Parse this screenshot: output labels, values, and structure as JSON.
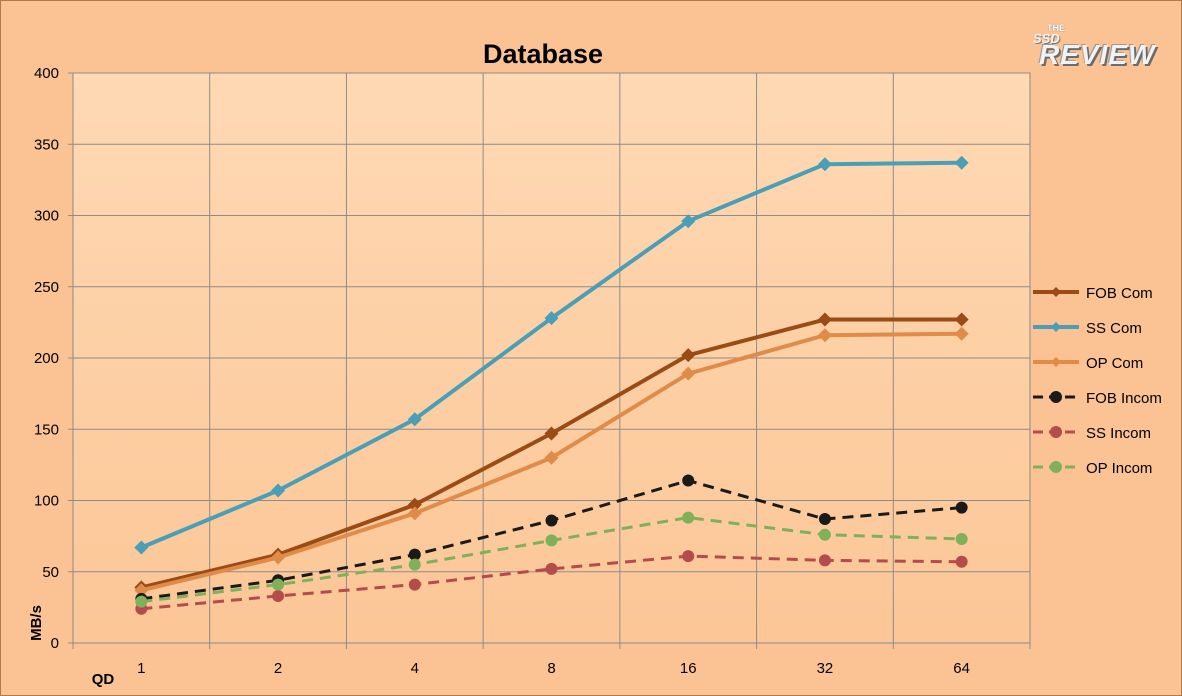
{
  "chart_data": {
    "type": "line",
    "title": "Database",
    "xlabel": "QD",
    "ylabel": "MB/s",
    "categories": [
      "1",
      "2",
      "4",
      "8",
      "16",
      "32",
      "64"
    ],
    "ylim": [
      0,
      400
    ],
    "yticks": [
      0,
      50,
      100,
      150,
      200,
      250,
      300,
      350,
      400
    ],
    "grid": true,
    "legend_position": "right",
    "series": [
      {
        "name": "FOB Com",
        "values": [
          39,
          62,
          97,
          147,
          202,
          227,
          227
        ],
        "color": "#9b4b14",
        "dash": false,
        "marker": "diamond"
      },
      {
        "name": "SS Com",
        "values": [
          67,
          107,
          157,
          228,
          296,
          336,
          337
        ],
        "color": "#4a9fb6",
        "dash": false,
        "marker": "diamond"
      },
      {
        "name": "OP Com",
        "values": [
          37,
          60,
          91,
          130,
          189,
          216,
          217
        ],
        "color": "#e08b47",
        "dash": false,
        "marker": "diamond"
      },
      {
        "name": "FOB Incom",
        "values": [
          31,
          44,
          62,
          86,
          114,
          87,
          95
        ],
        "color": "#1a1a1a",
        "dash": true,
        "marker": "circle"
      },
      {
        "name": "SS Incom",
        "values": [
          24,
          33,
          41,
          52,
          61,
          58,
          57
        ],
        "color": "#b64b4b",
        "dash": true,
        "marker": "circle"
      },
      {
        "name": "OP Incom",
        "values": [
          29,
          41,
          55,
          72,
          88,
          76,
          73
        ],
        "color": "#7fb05a",
        "dash": true,
        "marker": "circle"
      }
    ]
  },
  "logo": {
    "small_text": "THE",
    "ssd_text": "SSD",
    "review_text": "REVIEW"
  }
}
